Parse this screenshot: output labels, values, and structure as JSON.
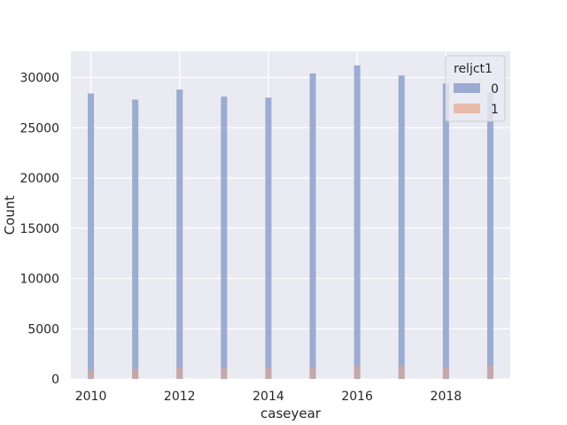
{
  "chart_data": {
    "type": "bar",
    "title": "",
    "xlabel": "caseyear",
    "ylabel": "Count",
    "x": [
      2010,
      2011,
      2012,
      2013,
      2014,
      2015,
      2016,
      2017,
      2018,
      2019
    ],
    "xlim": [
      2009.55,
      2019.45
    ],
    "ylim": [
      0,
      32600
    ],
    "xticks": [
      2010,
      2012,
      2014,
      2016,
      2018
    ],
    "yticks": [
      0,
      5000,
      10000,
      15000,
      20000,
      25000,
      30000
    ],
    "grid": true,
    "legend": {
      "title": "reljct1",
      "placement": "top-right"
    },
    "series": [
      {
        "name": "0",
        "color": "#8DA0CB",
        "values": [
          28400,
          27800,
          28800,
          28100,
          28000,
          30400,
          31200,
          30200,
          29400,
          28500
        ]
      },
      {
        "name": "1",
        "color": "#E5A58B",
        "values": [
          900,
          1000,
          1200,
          1100,
          1200,
          1200,
          1300,
          1300,
          1200,
          1300
        ]
      }
    ]
  }
}
